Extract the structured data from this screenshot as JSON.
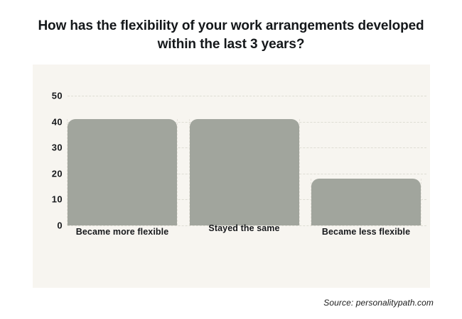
{
  "chart_data": {
    "type": "bar",
    "title": "How has the flexibility of your work arrangements developed within the last 3 years?",
    "title_lines": [
      "How has the flexibility of your work arrangements developed",
      "within the last 3 years?"
    ],
    "categories": [
      "Became more flexible",
      "Stayed the same",
      "Became less flexible"
    ],
    "values": [
      41,
      41,
      18
    ],
    "ylim": [
      0,
      50
    ],
    "yticks": [
      0,
      10,
      20,
      30,
      40,
      50
    ],
    "xlabel": "",
    "ylabel": "",
    "grid": "horizontal dashed gridlines with dashed category edge guides",
    "legend_position": "none",
    "colors": {
      "bar": "#a1a59d",
      "panel_bg": "#f7f5f0",
      "page_bg": "#ffffff",
      "gridline": "#deddd4",
      "guide": "#e5e2da",
      "title_text": "#14171a",
      "axis_text": "#17191c",
      "source_text": "#1c1c1c"
    }
  },
  "source": {
    "label": "Source: personalitypath.com"
  }
}
